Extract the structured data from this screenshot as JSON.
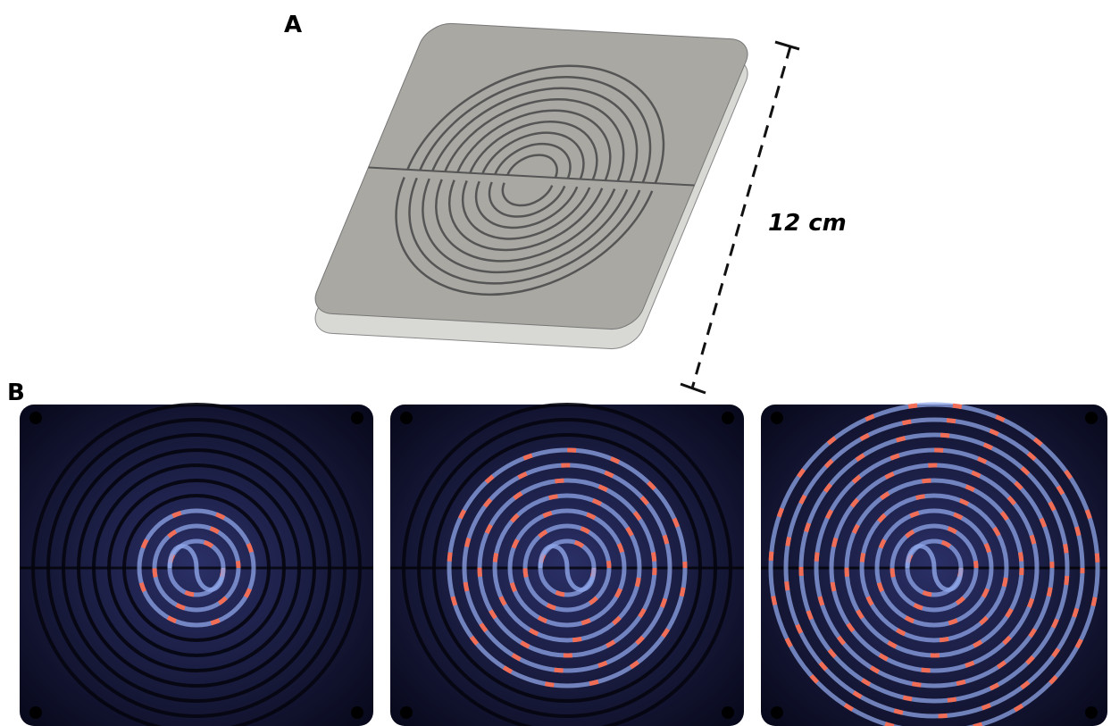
{
  "panels": [
    {
      "label": "A"
    },
    {
      "label": "B"
    }
  ],
  "dimension_label": "12 cm"
}
